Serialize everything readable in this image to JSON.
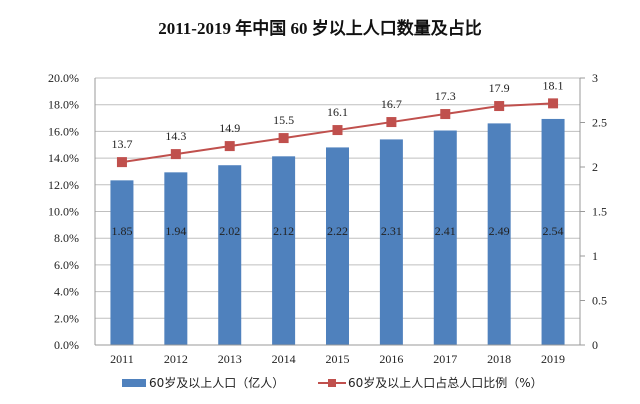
{
  "chart_data": {
    "type": "bar",
    "title": "2011-2019 年中国 60 岁以上人口数量及占比",
    "categories": [
      "2011",
      "2012",
      "2013",
      "2014",
      "2015",
      "2016",
      "2017",
      "2018",
      "2019"
    ],
    "series": [
      {
        "name": "60岁及以上人口（亿人）",
        "type": "bar",
        "axis": "right",
        "color": "#4F81BD",
        "values": [
          1.85,
          1.94,
          2.02,
          2.12,
          2.22,
          2.31,
          2.41,
          2.49,
          2.54
        ]
      },
      {
        "name": "60岁及以上人口占总人口比例（%）",
        "type": "line",
        "axis": "left",
        "color": "#C0504D",
        "values": [
          13.7,
          14.3,
          14.9,
          15.5,
          16.1,
          16.7,
          17.3,
          17.9,
          18.1
        ]
      }
    ],
    "left_axis": {
      "ylim": [
        0,
        20
      ],
      "ticks": [
        "0.0%",
        "2.0%",
        "4.0%",
        "6.0%",
        "8.0%",
        "10.0%",
        "12.0%",
        "14.0%",
        "16.0%",
        "18.0%",
        "20.0%"
      ]
    },
    "right_axis": {
      "ylim": [
        0,
        3
      ],
      "ticks": [
        "0",
        "0.5",
        "1",
        "1.5",
        "2",
        "2.5",
        "3"
      ]
    },
    "grid": true,
    "legend": "bottom"
  }
}
